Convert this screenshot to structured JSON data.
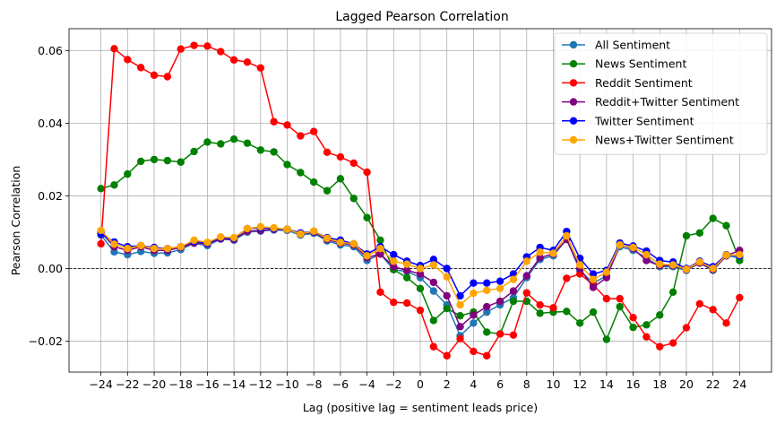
{
  "chart_data": {
    "type": "line",
    "title": "Lagged Pearson Correlation",
    "xlabel": "Lag (positive lag = sentiment leads price)",
    "ylabel": "Pearson Correlation",
    "xlim": [
      -26.4,
      26.4
    ],
    "ylim": [
      -0.0285,
      0.066
    ],
    "x": [
      -24,
      -23,
      -22,
      -21,
      -20,
      -19,
      -18,
      -17,
      -16,
      -15,
      -14,
      -13,
      -12,
      -11,
      -10,
      -9,
      -8,
      -7,
      -6,
      -5,
      -4,
      -3,
      -2,
      -1,
      0,
      1,
      2,
      3,
      4,
      5,
      6,
      7,
      8,
      9,
      10,
      11,
      12,
      13,
      14,
      15,
      16,
      17,
      18,
      19,
      20,
      21,
      22,
      23,
      24
    ],
    "xticks": [
      -24,
      -22,
      -20,
      -18,
      -16,
      -14,
      -12,
      -10,
      -8,
      -6,
      -4,
      -2,
      0,
      2,
      4,
      6,
      8,
      10,
      12,
      14,
      16,
      18,
      20,
      22,
      24
    ],
    "xtick_labels": [
      "−24",
      "−22",
      "−20",
      "−18",
      "−16",
      "−14",
      "−12",
      "−10",
      "−8",
      "−6",
      "−4",
      "−2",
      "0",
      "2",
      "4",
      "6",
      "8",
      "10",
      "12",
      "14",
      "16",
      "18",
      "20",
      "22",
      "24"
    ],
    "yticks": [
      -0.02,
      0.0,
      0.02,
      0.04,
      0.06
    ],
    "ytick_labels": [
      "−0.02",
      "0.00",
      "0.02",
      "0.04",
      "0.06"
    ],
    "grid": true,
    "zero_line": true,
    "legend_position": "top-right",
    "series": [
      {
        "name": "All Sentiment",
        "color": "#1f77b4",
        "values": [
          0.0092,
          0.0046,
          0.0038,
          0.0047,
          0.0042,
          0.0043,
          0.0052,
          0.007,
          0.0063,
          0.0081,
          0.0078,
          0.01,
          0.0103,
          0.0106,
          0.0105,
          0.0092,
          0.0097,
          0.0076,
          0.0065,
          0.006,
          0.0022,
          0.004,
          -0.0003,
          -0.0008,
          -0.0025,
          -0.0062,
          -0.01,
          -0.0185,
          -0.015,
          -0.012,
          -0.01,
          -0.008,
          -0.0025,
          0.0025,
          0.0035,
          0.008,
          -0.0005,
          -0.004,
          -0.002,
          0.006,
          0.005,
          0.003,
          0.0005,
          0.0005,
          -0.0005,
          0.0015,
          -0.0005,
          0.0035,
          0.003
        ]
      },
      {
        "name": "News Sentiment",
        "color": "#008000",
        "values": [
          0.022,
          0.023,
          0.026,
          0.0295,
          0.03,
          0.0297,
          0.0293,
          0.0322,
          0.0348,
          0.0343,
          0.0356,
          0.0345,
          0.0326,
          0.0321,
          0.0286,
          0.0264,
          0.0238,
          0.0214,
          0.0247,
          0.0193,
          0.014,
          0.0078,
          -0.0003,
          -0.0025,
          -0.0055,
          -0.0143,
          -0.011,
          -0.013,
          -0.012,
          -0.0175,
          -0.018,
          -0.009,
          -0.009,
          -0.0123,
          -0.012,
          -0.0118,
          -0.015,
          -0.012,
          -0.0195,
          -0.0105,
          -0.0162,
          -0.0155,
          -0.0128,
          -0.0065,
          0.009,
          0.0098,
          0.0138,
          0.0118,
          0.0022
        ]
      },
      {
        "name": "Reddit Sentiment",
        "color": "#ff0000",
        "values": [
          0.0068,
          0.0605,
          0.0575,
          0.0553,
          0.0532,
          0.0528,
          0.0604,
          0.0614,
          0.0612,
          0.0597,
          0.0574,
          0.0568,
          0.0552,
          0.0404,
          0.0395,
          0.0365,
          0.0377,
          0.032,
          0.0307,
          0.029,
          0.0265,
          -0.0065,
          -0.0093,
          -0.0095,
          -0.0115,
          -0.0215,
          -0.024,
          -0.0193,
          -0.0228,
          -0.024,
          -0.018,
          -0.0183,
          -0.0067,
          -0.01,
          -0.0108,
          -0.0027,
          -0.0015,
          -0.0045,
          -0.0083,
          -0.0083,
          -0.0135,
          -0.0188,
          -0.0215,
          -0.0205,
          -0.0163,
          -0.0097,
          -0.0113,
          -0.015,
          -0.008
        ]
      },
      {
        "name": "Reddit+Twitter Sentiment",
        "color": "#800080",
        "values": [
          0.01,
          0.006,
          0.005,
          0.006,
          0.005,
          0.005,
          0.0058,
          0.007,
          0.0068,
          0.0082,
          0.008,
          0.0103,
          0.0105,
          0.0108,
          0.0108,
          0.0095,
          0.01,
          0.008,
          0.007,
          0.0065,
          0.003,
          0.004,
          0.0005,
          -0.0005,
          -0.0015,
          -0.0038,
          -0.0075,
          -0.016,
          -0.0128,
          -0.0105,
          -0.009,
          -0.0062,
          -0.002,
          0.003,
          0.004,
          0.008,
          0.0,
          -0.0052,
          -0.0025,
          0.0065,
          0.0055,
          0.0022,
          0.0008,
          0.0008,
          -0.0003,
          0.0015,
          -0.0003,
          0.0035,
          0.005
        ]
      },
      {
        "name": "Twitter Sentiment",
        "color": "#0000ff",
        "values": [
          0.0095,
          0.0073,
          0.006,
          0.0063,
          0.0058,
          0.0055,
          0.006,
          0.0075,
          0.007,
          0.0085,
          0.0083,
          0.011,
          0.0112,
          0.011,
          0.0108,
          0.0098,
          0.0102,
          0.0085,
          0.0078,
          0.0068,
          0.004,
          0.006,
          0.0038,
          0.002,
          0.0008,
          0.0025,
          0.0,
          -0.0075,
          -0.004,
          -0.004,
          -0.0035,
          -0.0015,
          0.0032,
          0.0058,
          0.005,
          0.0102,
          0.0028,
          -0.0015,
          -0.0005,
          0.007,
          0.0062,
          0.0048,
          0.0022,
          0.0018,
          0.0,
          0.002,
          0.0005,
          0.0038,
          0.0035
        ]
      },
      {
        "name": "News+Twitter Sentiment",
        "color": "#ffa500",
        "values": [
          0.0105,
          0.0067,
          0.0055,
          0.0063,
          0.0055,
          0.0055,
          0.006,
          0.0078,
          0.0072,
          0.0087,
          0.0085,
          0.011,
          0.0115,
          0.0112,
          0.0108,
          0.0095,
          0.0103,
          0.0083,
          0.0072,
          0.0068,
          0.0035,
          0.0055,
          0.002,
          0.0012,
          0.0,
          0.001,
          -0.0023,
          -0.01,
          -0.0068,
          -0.006,
          -0.0055,
          -0.003,
          0.002,
          0.0045,
          0.0042,
          0.009,
          0.001,
          -0.003,
          -0.001,
          0.0065,
          0.0058,
          0.0038,
          0.0012,
          0.001,
          -0.0002,
          0.0018,
          0.0,
          0.0037,
          0.0038
        ]
      }
    ]
  }
}
